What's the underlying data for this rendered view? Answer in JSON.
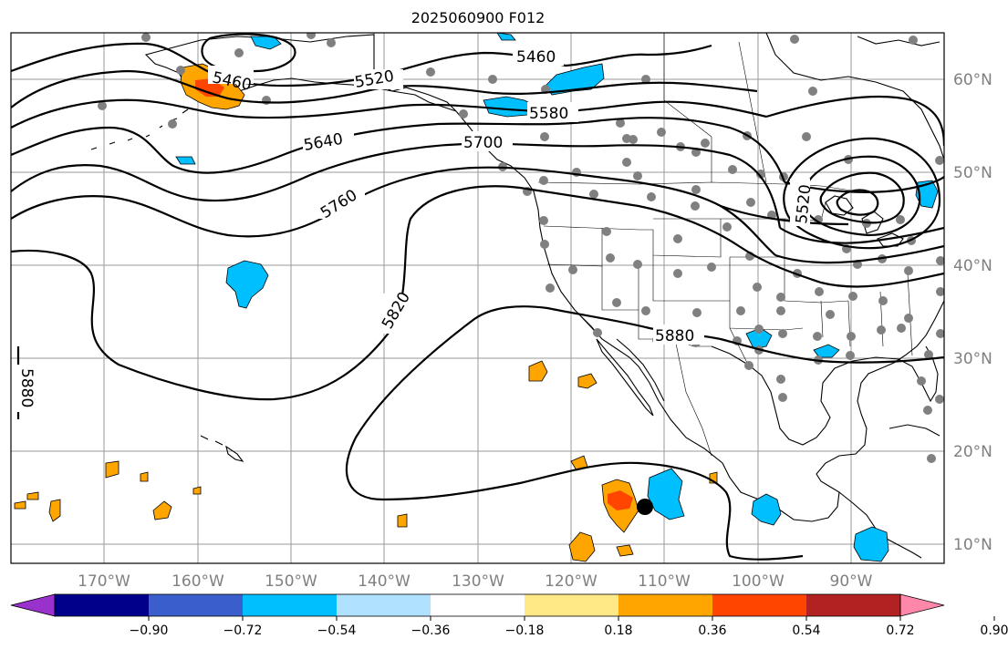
{
  "map": {
    "title": "2025060900 F012",
    "lon_labels": [
      "170°W",
      "160°W",
      "150°W",
      "140°W",
      "130°W",
      "120°W",
      "110°W",
      "100°W",
      "90°W"
    ],
    "lat_labels": [
      "60°N",
      "50°N",
      "40°N",
      "30°N",
      "20°N",
      "10°N"
    ],
    "contour_labels": [
      "5460",
      "5460",
      "5520",
      "5580",
      "5640",
      "5700",
      "5760",
      "5820",
      "5880",
      "5520",
      "5880"
    ],
    "marker": {
      "lon": -111.0,
      "lat": 14.0
    }
  },
  "colorbar": {
    "tick_labels": [
      "−0.90",
      "−0.72",
      "−0.54",
      "−0.36",
      "−0.18",
      "0.18",
      "0.36",
      "0.54",
      "0.72",
      "0.90"
    ],
    "colors": [
      "#9932cc",
      "#00008b",
      "#3a5fcd",
      "#00bfff",
      "#b0e2ff",
      "#ffffff",
      "#ffe987",
      "#ffa500",
      "#ff4500",
      "#b22222",
      "#ff88aa"
    ]
  }
}
